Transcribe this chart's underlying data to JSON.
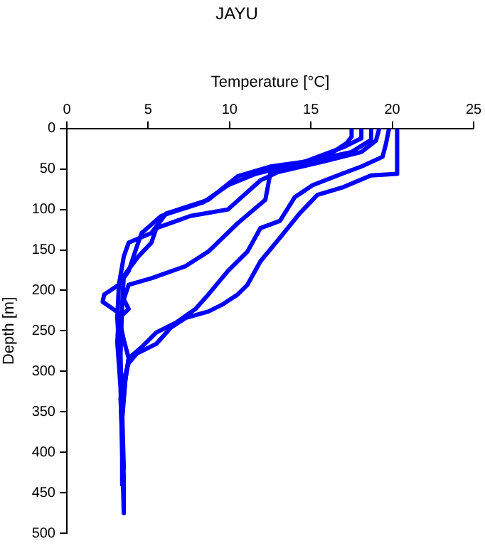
{
  "chart_data": {
    "type": "line",
    "title": "JAYU",
    "xlabel": "Temperature [°C]",
    "ylabel": "Depth [m]",
    "xlim": [
      0,
      25
    ],
    "xticks": [
      0,
      5,
      10,
      15,
      20,
      25
    ],
    "ylim": [
      500,
      0
    ],
    "yticks": [
      0,
      50,
      100,
      150,
      200,
      250,
      300,
      350,
      400,
      450,
      500
    ],
    "grid": false,
    "legend": false,
    "marker": "none",
    "line_style": "solid",
    "series": [
      {
        "color": "#0000ff",
        "x": [
          20.3,
          20.3,
          18.7,
          16.9,
          15.4,
          14.3,
          13.1,
          11.9,
          11.1,
          10.5,
          9.6,
          8.7,
          7.3,
          6.4,
          5.5,
          4.3,
          3.8,
          3.5,
          3.3,
          3.4,
          3.5,
          3.5
        ],
        "values": [
          0,
          56,
          58,
          73,
          82,
          105,
          135,
          164,
          193,
          205,
          217,
          226,
          234,
          246,
          266,
          278,
          290,
          310,
          334,
          380,
          430,
          475
        ]
      },
      {
        "color": "#0000ff",
        "x": [
          19.8,
          19.6,
          19.4,
          18.1,
          16.9,
          15.1,
          14.0,
          13.1,
          11.9,
          11.1,
          9.9,
          8.7,
          7.9,
          6.7,
          5.5,
          4.6,
          3.8,
          3.6,
          3.4,
          3.4
        ],
        "values": [
          0,
          20,
          35,
          47,
          56,
          70,
          85,
          114,
          123,
          152,
          176,
          205,
          223,
          240,
          252,
          270,
          284,
          310,
          360,
          440
        ]
      },
      {
        "color": "#0000ff",
        "x": [
          19.2,
          19.0,
          18.1,
          15.7,
          12.5,
          12.2,
          10.5,
          8.7,
          7.3,
          5.2,
          3.8,
          3.5,
          3.8,
          3.2,
          3.5,
          3.8,
          3.6,
          3.4,
          3.5
        ],
        "values": [
          0,
          15,
          29,
          41,
          56,
          88,
          117,
          152,
          170,
          185,
          193,
          211,
          223,
          234,
          261,
          284,
          310,
          350,
          420
        ]
      },
      {
        "color": "#0000ff",
        "x": [
          17.5,
          17.5,
          17.2,
          15.7,
          12.5,
          10.5,
          8.7,
          6.1,
          5.2,
          3.8,
          3.5,
          3.2,
          2.3,
          2.2,
          3.2,
          3.1,
          3.3,
          3.4,
          3.5
        ],
        "values": [
          0,
          10,
          18,
          38,
          47,
          59,
          88,
          105,
          129,
          141,
          158,
          193,
          205,
          214,
          228,
          264,
          320,
          400,
          475
        ]
      },
      {
        "color": "#0000ff",
        "x": [
          18.1,
          18.1,
          17.0,
          14.6,
          11.6,
          9.9,
          8.4,
          5.8,
          4.6,
          4.3,
          4.1,
          3.8,
          3.2,
          3.1,
          3.3,
          3.4
        ],
        "values": [
          0,
          12,
          23,
          41,
          56,
          70,
          91,
          108,
          129,
          146,
          158,
          176,
          193,
          234,
          300,
          380
        ]
      },
      {
        "color": "#0000ff",
        "x": [
          18.7,
          18.7,
          17.5,
          14.0,
          11.9,
          9.9,
          7.6,
          5.5,
          5.2,
          4.4,
          3.5,
          3.4,
          3.3,
          3.4
        ],
        "values": [
          0,
          14,
          29,
          44,
          64,
          100,
          108,
          123,
          141,
          158,
          182,
          217,
          280,
          360
        ]
      }
    ]
  }
}
